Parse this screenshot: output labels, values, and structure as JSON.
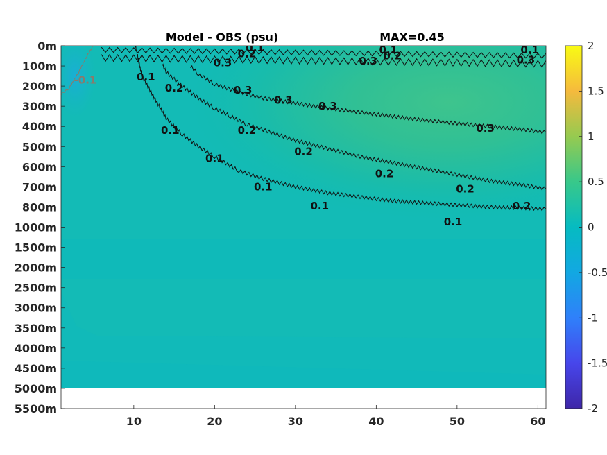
{
  "chart_data": {
    "type": "heatmap",
    "title": "Model - OBS (psu)",
    "max_label": "MAX=0.45",
    "y_tick_labels": [
      "0m",
      "100m",
      "200m",
      "300m",
      "400m",
      "500m",
      "600m",
      "700m",
      "800m",
      "1000m",
      "1500m",
      "2000m",
      "2500m",
      "3000m",
      "3500m",
      "4000m",
      "4500m",
      "5000m",
      "5500m"
    ],
    "x_range": [
      1,
      61
    ],
    "x_ticks": [
      10,
      20,
      30,
      40,
      50,
      60
    ],
    "colorbar": {
      "range": [
        -2,
        2
      ],
      "ticks": [
        2,
        1.5,
        1,
        0.5,
        0,
        -0.5,
        -1,
        -1.5,
        -2
      ],
      "tick_labels": [
        "2",
        "1.5",
        "1",
        "0.5",
        "0",
        "-0.5",
        "-1",
        "-1.5",
        "-2"
      ],
      "colormap": "parula"
    },
    "contour_levels": [
      0.1,
      0.2,
      0.3,
      -0.1
    ],
    "contours": [
      {
        "level": 0.1,
        "label": "0.1",
        "x": [
          10.2,
          11,
          12,
          14,
          16,
          18,
          20,
          23,
          26,
          30,
          34,
          38,
          42,
          46,
          50,
          54,
          58,
          61
        ],
        "depth_index": [
          0,
          1.5,
          2.2,
          3.6,
          4.4,
          5.0,
          5.5,
          6.2,
          6.6,
          7.0,
          7.3,
          7.5,
          7.7,
          7.8,
          7.9,
          8.0,
          8.05,
          8.1
        ]
      },
      {
        "level": 0.2,
        "label": "0.2",
        "x": [
          13.5,
          14,
          16,
          18,
          20,
          22,
          24,
          27,
          30,
          34,
          38,
          42,
          46,
          50,
          54,
          58,
          61
        ],
        "depth_index": [
          0.9,
          1.3,
          2.0,
          2.6,
          3.1,
          3.5,
          3.9,
          4.3,
          4.7,
          5.1,
          5.5,
          5.8,
          6.1,
          6.4,
          6.7,
          6.9,
          7.1
        ]
      },
      {
        "level": 0.3,
        "label": "0.3",
        "x": [
          17,
          18,
          20,
          23,
          26,
          30,
          34,
          38,
          42,
          46,
          50,
          54,
          58,
          61
        ],
        "depth_index": [
          1.0,
          1.4,
          1.9,
          2.3,
          2.6,
          2.85,
          3.1,
          3.3,
          3.5,
          3.7,
          3.85,
          4.0,
          4.15,
          4.3
        ]
      },
      {
        "level": -0.1,
        "label": "-0.1",
        "x": [
          1,
          2,
          3.2,
          4.2,
          5.0
        ],
        "depth_index": [
          2.4,
          2.1,
          1.3,
          0.5,
          0
        ]
      }
    ],
    "contour_labels": [
      {
        "text": "0.1",
        "x": 25,
        "depth_index": 0.1
      },
      {
        "text": "0.2",
        "x": 24,
        "depth_index": 0.4
      },
      {
        "text": "0.1",
        "x": 41.5,
        "depth_index": 0.2
      },
      {
        "text": "0.2",
        "x": 42,
        "depth_index": 0.5
      },
      {
        "text": "0.1",
        "x": 59,
        "depth_index": 0.2
      },
      {
        "text": "0.3",
        "x": 21,
        "depth_index": 0.85
      },
      {
        "text": "0.3",
        "x": 39,
        "depth_index": 0.75
      },
      {
        "text": "0.3",
        "x": 58.5,
        "depth_index": 0.7
      },
      {
        "text": "0.1",
        "x": 11.5,
        "depth_index": 1.55
      },
      {
        "text": "0.2",
        "x": 15,
        "depth_index": 2.1
      },
      {
        "text": "0.3",
        "x": 23.5,
        "depth_index": 2.2
      },
      {
        "text": "0.3",
        "x": 28.5,
        "depth_index": 2.7
      },
      {
        "text": "0.3",
        "x": 34,
        "depth_index": 3.0
      },
      {
        "text": "0.3",
        "x": 53.5,
        "depth_index": 4.1
      },
      {
        "text": "0.1",
        "x": 14.5,
        "depth_index": 4.2
      },
      {
        "text": "0.2",
        "x": 24,
        "depth_index": 4.2
      },
      {
        "text": "0.2",
        "x": 31,
        "depth_index": 5.25
      },
      {
        "text": "0.1",
        "x": 20,
        "depth_index": 5.6
      },
      {
        "text": "0.2",
        "x": 41,
        "depth_index": 6.35
      },
      {
        "text": "0.1",
        "x": 26,
        "depth_index": 7.0
      },
      {
        "text": "0.2",
        "x": 51,
        "depth_index": 7.1
      },
      {
        "text": "0.1",
        "x": 33,
        "depth_index": 7.95
      },
      {
        "text": "0.2",
        "x": 58,
        "depth_index": 7.95
      },
      {
        "text": "0.1",
        "x": 49.5,
        "depth_index": 8.75
      },
      {
        "text": "-0.1",
        "x": 4,
        "depth_index": 1.7
      }
    ]
  }
}
